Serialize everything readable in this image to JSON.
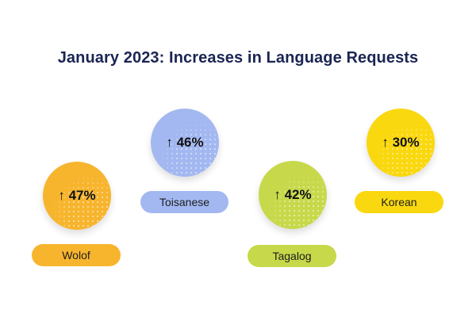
{
  "title": "January 2023: Increases in Language Requests",
  "items": [
    {
      "language": "Wolof",
      "increase": "↑ 47%",
      "value": 47,
      "color": "#f7b52e"
    },
    {
      "language": "Toisanese",
      "increase": "↑ 46%",
      "value": 46,
      "color": "#a3b8f1"
    },
    {
      "language": "Tagalog",
      "increase": "↑ 42%",
      "value": 42,
      "color": "#c7d94a"
    },
    {
      "language": "Korean",
      "increase": "↑ 30%",
      "value": 30,
      "color": "#f9d80f"
    }
  ]
}
